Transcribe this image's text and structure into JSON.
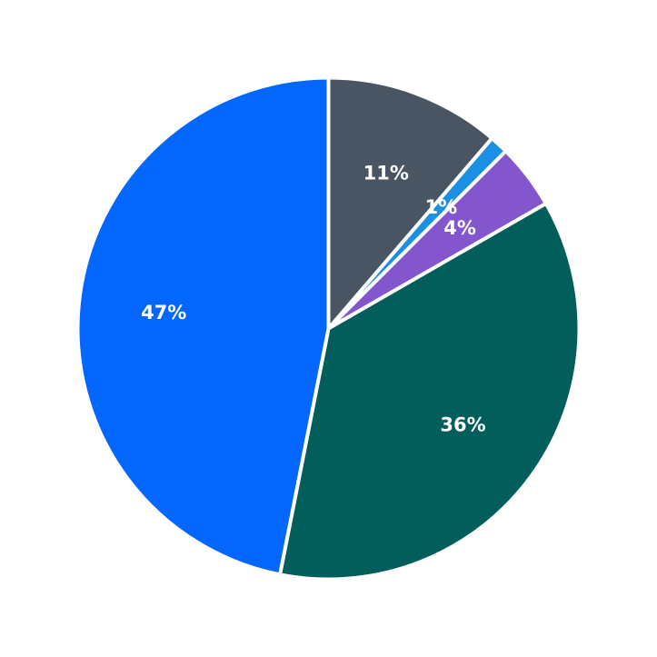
{
  "chart_data": {
    "type": "pie",
    "title": "",
    "start_angle_deg": 0,
    "direction": "clockwise",
    "slices": [
      {
        "label": "11%",
        "value": 11.3,
        "color": "#4a5563"
      },
      {
        "label": "1%",
        "value": 1.2,
        "color": "#1a8fe3"
      },
      {
        "label": "4%",
        "value": 4.2,
        "color": "#8456ce"
      },
      {
        "label": "36%",
        "value": 36.4,
        "color": "#025e5b"
      },
      {
        "label": "47%",
        "value": 46.9,
        "color": "#0367fe"
      }
    ]
  }
}
